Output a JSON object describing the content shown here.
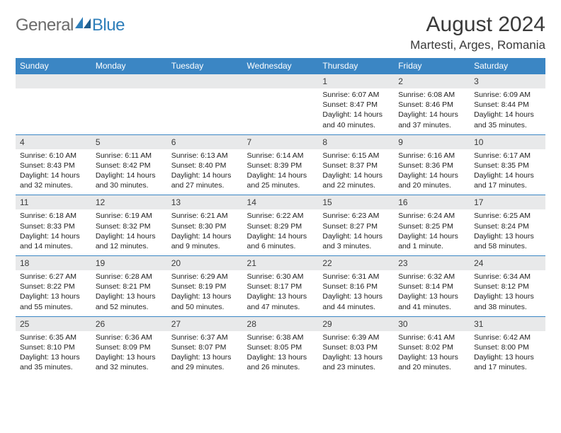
{
  "brand": {
    "name1": "General",
    "name2": "Blue"
  },
  "title": "August 2024",
  "location": "Martesti, Arges, Romania",
  "dayNames": [
    "Sunday",
    "Monday",
    "Tuesday",
    "Wednesday",
    "Thursday",
    "Friday",
    "Saturday"
  ],
  "colors": {
    "headerBar": "#3b86c4",
    "dateRow": "#e8e9ea",
    "logoGray": "#6b6b6b",
    "logoBlue": "#2f7fba"
  },
  "weeks": [
    [
      {
        "date": "",
        "lines": []
      },
      {
        "date": "",
        "lines": []
      },
      {
        "date": "",
        "lines": []
      },
      {
        "date": "",
        "lines": []
      },
      {
        "date": "1",
        "lines": [
          "Sunrise: 6:07 AM",
          "Sunset: 8:47 PM",
          "Daylight: 14 hours",
          "and 40 minutes."
        ]
      },
      {
        "date": "2",
        "lines": [
          "Sunrise: 6:08 AM",
          "Sunset: 8:46 PM",
          "Daylight: 14 hours",
          "and 37 minutes."
        ]
      },
      {
        "date": "3",
        "lines": [
          "Sunrise: 6:09 AM",
          "Sunset: 8:44 PM",
          "Daylight: 14 hours",
          "and 35 minutes."
        ]
      }
    ],
    [
      {
        "date": "4",
        "lines": [
          "Sunrise: 6:10 AM",
          "Sunset: 8:43 PM",
          "Daylight: 14 hours",
          "and 32 minutes."
        ]
      },
      {
        "date": "5",
        "lines": [
          "Sunrise: 6:11 AM",
          "Sunset: 8:42 PM",
          "Daylight: 14 hours",
          "and 30 minutes."
        ]
      },
      {
        "date": "6",
        "lines": [
          "Sunrise: 6:13 AM",
          "Sunset: 8:40 PM",
          "Daylight: 14 hours",
          "and 27 minutes."
        ]
      },
      {
        "date": "7",
        "lines": [
          "Sunrise: 6:14 AM",
          "Sunset: 8:39 PM",
          "Daylight: 14 hours",
          "and 25 minutes."
        ]
      },
      {
        "date": "8",
        "lines": [
          "Sunrise: 6:15 AM",
          "Sunset: 8:37 PM",
          "Daylight: 14 hours",
          "and 22 minutes."
        ]
      },
      {
        "date": "9",
        "lines": [
          "Sunrise: 6:16 AM",
          "Sunset: 8:36 PM",
          "Daylight: 14 hours",
          "and 20 minutes."
        ]
      },
      {
        "date": "10",
        "lines": [
          "Sunrise: 6:17 AM",
          "Sunset: 8:35 PM",
          "Daylight: 14 hours",
          "and 17 minutes."
        ]
      }
    ],
    [
      {
        "date": "11",
        "lines": [
          "Sunrise: 6:18 AM",
          "Sunset: 8:33 PM",
          "Daylight: 14 hours",
          "and 14 minutes."
        ]
      },
      {
        "date": "12",
        "lines": [
          "Sunrise: 6:19 AM",
          "Sunset: 8:32 PM",
          "Daylight: 14 hours",
          "and 12 minutes."
        ]
      },
      {
        "date": "13",
        "lines": [
          "Sunrise: 6:21 AM",
          "Sunset: 8:30 PM",
          "Daylight: 14 hours",
          "and 9 minutes."
        ]
      },
      {
        "date": "14",
        "lines": [
          "Sunrise: 6:22 AM",
          "Sunset: 8:29 PM",
          "Daylight: 14 hours",
          "and 6 minutes."
        ]
      },
      {
        "date": "15",
        "lines": [
          "Sunrise: 6:23 AM",
          "Sunset: 8:27 PM",
          "Daylight: 14 hours",
          "and 3 minutes."
        ]
      },
      {
        "date": "16",
        "lines": [
          "Sunrise: 6:24 AM",
          "Sunset: 8:25 PM",
          "Daylight: 14 hours",
          "and 1 minute."
        ]
      },
      {
        "date": "17",
        "lines": [
          "Sunrise: 6:25 AM",
          "Sunset: 8:24 PM",
          "Daylight: 13 hours",
          "and 58 minutes."
        ]
      }
    ],
    [
      {
        "date": "18",
        "lines": [
          "Sunrise: 6:27 AM",
          "Sunset: 8:22 PM",
          "Daylight: 13 hours",
          "and 55 minutes."
        ]
      },
      {
        "date": "19",
        "lines": [
          "Sunrise: 6:28 AM",
          "Sunset: 8:21 PM",
          "Daylight: 13 hours",
          "and 52 minutes."
        ]
      },
      {
        "date": "20",
        "lines": [
          "Sunrise: 6:29 AM",
          "Sunset: 8:19 PM",
          "Daylight: 13 hours",
          "and 50 minutes."
        ]
      },
      {
        "date": "21",
        "lines": [
          "Sunrise: 6:30 AM",
          "Sunset: 8:17 PM",
          "Daylight: 13 hours",
          "and 47 minutes."
        ]
      },
      {
        "date": "22",
        "lines": [
          "Sunrise: 6:31 AM",
          "Sunset: 8:16 PM",
          "Daylight: 13 hours",
          "and 44 minutes."
        ]
      },
      {
        "date": "23",
        "lines": [
          "Sunrise: 6:32 AM",
          "Sunset: 8:14 PM",
          "Daylight: 13 hours",
          "and 41 minutes."
        ]
      },
      {
        "date": "24",
        "lines": [
          "Sunrise: 6:34 AM",
          "Sunset: 8:12 PM",
          "Daylight: 13 hours",
          "and 38 minutes."
        ]
      }
    ],
    [
      {
        "date": "25",
        "lines": [
          "Sunrise: 6:35 AM",
          "Sunset: 8:10 PM",
          "Daylight: 13 hours",
          "and 35 minutes."
        ]
      },
      {
        "date": "26",
        "lines": [
          "Sunrise: 6:36 AM",
          "Sunset: 8:09 PM",
          "Daylight: 13 hours",
          "and 32 minutes."
        ]
      },
      {
        "date": "27",
        "lines": [
          "Sunrise: 6:37 AM",
          "Sunset: 8:07 PM",
          "Daylight: 13 hours",
          "and 29 minutes."
        ]
      },
      {
        "date": "28",
        "lines": [
          "Sunrise: 6:38 AM",
          "Sunset: 8:05 PM",
          "Daylight: 13 hours",
          "and 26 minutes."
        ]
      },
      {
        "date": "29",
        "lines": [
          "Sunrise: 6:39 AM",
          "Sunset: 8:03 PM",
          "Daylight: 13 hours",
          "and 23 minutes."
        ]
      },
      {
        "date": "30",
        "lines": [
          "Sunrise: 6:41 AM",
          "Sunset: 8:02 PM",
          "Daylight: 13 hours",
          "and 20 minutes."
        ]
      },
      {
        "date": "31",
        "lines": [
          "Sunrise: 6:42 AM",
          "Sunset: 8:00 PM",
          "Daylight: 13 hours",
          "and 17 minutes."
        ]
      }
    ]
  ]
}
